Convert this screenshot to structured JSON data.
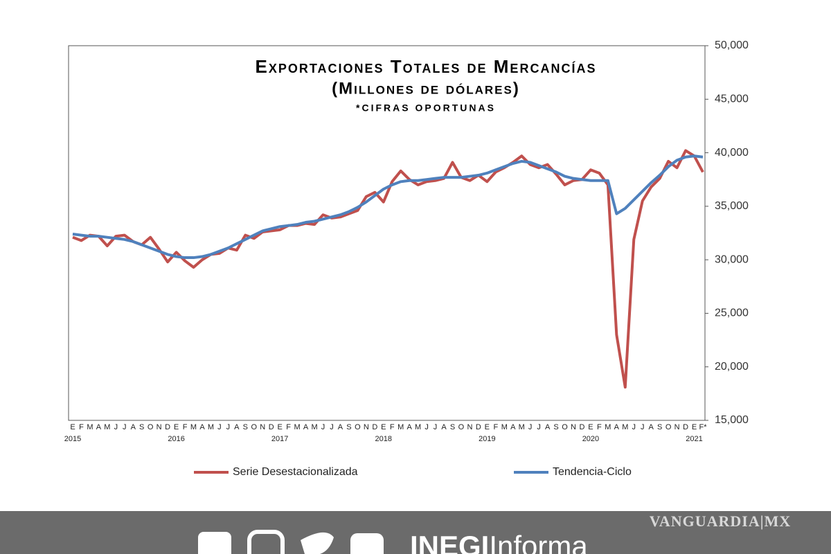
{
  "chart_data": {
    "type": "line",
    "title": "Exportaciones Totales de Mercancías",
    "subtitle": "(Millones de dólares)",
    "note": "*cifras oportunas",
    "categories": [
      "E",
      "F",
      "M",
      "A",
      "M",
      "J",
      "J",
      "A",
      "S",
      "O",
      "N",
      "D",
      "E",
      "F",
      "M",
      "A",
      "M",
      "J",
      "J",
      "A",
      "S",
      "O",
      "N",
      "D",
      "E",
      "F",
      "M",
      "A",
      "M",
      "J",
      "J",
      "A",
      "S",
      "O",
      "N",
      "D",
      "E",
      "F",
      "M",
      "A",
      "M",
      "J",
      "J",
      "A",
      "S",
      "O",
      "N",
      "D",
      "E",
      "F",
      "M",
      "A",
      "M",
      "J",
      "J",
      "A",
      "S",
      "O",
      "N",
      "D",
      "E",
      "F",
      "M",
      "A",
      "M",
      "J",
      "J",
      "A",
      "S",
      "O",
      "N",
      "D",
      "E",
      "F*"
    ],
    "year_labels": [
      "2015",
      null,
      null,
      null,
      null,
      null,
      null,
      null,
      null,
      null,
      null,
      null,
      "2016",
      null,
      null,
      null,
      null,
      null,
      null,
      null,
      null,
      null,
      null,
      null,
      "2017",
      null,
      null,
      null,
      null,
      null,
      null,
      null,
      null,
      null,
      null,
      null,
      "2018",
      null,
      null,
      null,
      null,
      null,
      null,
      null,
      null,
      null,
      null,
      null,
      "2019",
      null,
      null,
      null,
      null,
      null,
      null,
      null,
      null,
      null,
      null,
      null,
      "2020",
      null,
      null,
      null,
      null,
      null,
      null,
      null,
      null,
      null,
      null,
      null,
      "2021",
      null
    ],
    "series": [
      {
        "name": "Serie Desestacionalizada",
        "color": "#c0504d",
        "values": [
          32100,
          31800,
          32300,
          32200,
          31300,
          32200,
          32300,
          31700,
          31400,
          32100,
          31000,
          29800,
          30700,
          29900,
          29300,
          30000,
          30500,
          30600,
          31100,
          30900,
          32300,
          32000,
          32600,
          32700,
          32800,
          33200,
          33200,
          33400,
          33300,
          34200,
          33900,
          34000,
          34300,
          34600,
          35900,
          36300,
          35400,
          37300,
          38300,
          37500,
          37000,
          37300,
          37400,
          37600,
          39100,
          37700,
          37400,
          37900,
          37300,
          38200,
          38600,
          39100,
          39700,
          38900,
          38600,
          38900,
          38000,
          37000,
          37400,
          37500,
          38400,
          38100,
          37000,
          23000,
          18100,
          31900,
          35500,
          36800,
          37600,
          39200,
          38600,
          40200,
          39700,
          38200
        ]
      },
      {
        "name": "Tendencia-Ciclo",
        "color": "#4f81bd",
        "values": [
          32400,
          32300,
          32200,
          32200,
          32100,
          32000,
          31900,
          31700,
          31400,
          31100,
          30800,
          30500,
          30300,
          30200,
          30200,
          30300,
          30500,
          30800,
          31100,
          31500,
          31900,
          32300,
          32700,
          32900,
          33100,
          33200,
          33300,
          33500,
          33600,
          33800,
          34000,
          34200,
          34500,
          34900,
          35400,
          36000,
          36600,
          37000,
          37300,
          37400,
          37400,
          37500,
          37600,
          37700,
          37700,
          37700,
          37800,
          37900,
          38100,
          38400,
          38700,
          39000,
          39200,
          39100,
          38800,
          38500,
          38200,
          37800,
          37600,
          37500,
          37400,
          37400,
          37400,
          34300,
          34800,
          35600,
          36400,
          37200,
          37900,
          38700,
          39300,
          39600,
          39700,
          39600
        ]
      }
    ],
    "ylim": [
      15000,
      50000
    ],
    "yticks": [
      {
        "value": 15000,
        "label": "15,000"
      },
      {
        "value": 20000,
        "label": "20,000"
      },
      {
        "value": 25000,
        "label": "25,000"
      },
      {
        "value": 30000,
        "label": "30,000"
      },
      {
        "value": 35000,
        "label": "35,000"
      },
      {
        "value": 40000,
        "label": "40,000"
      },
      {
        "value": 45000,
        "label": "45,000"
      },
      {
        "value": 50000,
        "label": "50,000"
      }
    ],
    "y_axis_side": "right",
    "grid": false
  },
  "footer": {
    "brand": "VANGUARDIA|MX",
    "logo_bold": "INEGI",
    "logo_light": "Informa"
  }
}
